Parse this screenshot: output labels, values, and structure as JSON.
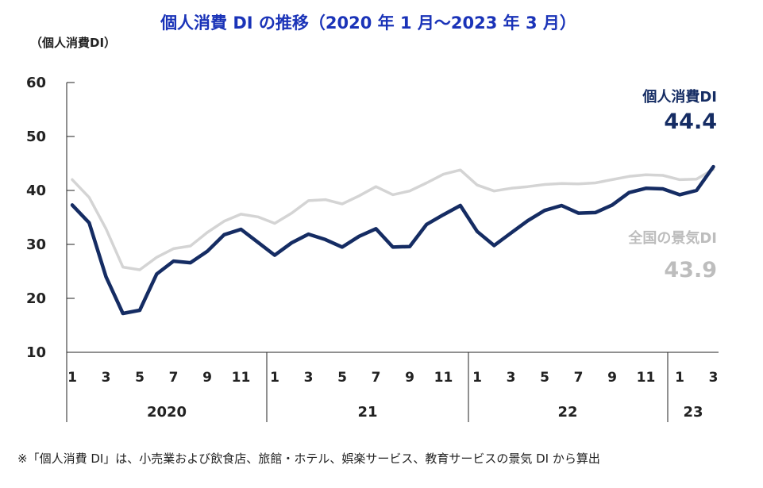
{
  "colors": {
    "personal": "#152c63",
    "national": "#d4d4d4",
    "title": "#1a33b8",
    "axis": "#222222",
    "text": "#222222",
    "national_label": "#bdbdbd"
  },
  "chart_data": {
    "type": "line",
    "title": "個人消費 DI の推移（2020 年 1 月～2023 年 3 月）",
    "ylabel": "（個人消費DI）",
    "ylim": [
      10,
      60
    ],
    "yticks": [
      "60",
      "50",
      "40",
      "30",
      "20",
      "10"
    ],
    "ytick_values": [
      60,
      50,
      40,
      30,
      20,
      10
    ],
    "month_tick_labels": [
      "1",
      "3",
      "5",
      "7",
      "9",
      "11",
      "1",
      "3",
      "5",
      "7",
      "9",
      "11",
      "1",
      "3",
      "5",
      "7",
      "9",
      "11",
      "1",
      "3"
    ],
    "month_tick_index": [
      0,
      2,
      4,
      6,
      8,
      10,
      12,
      14,
      16,
      18,
      20,
      22,
      24,
      26,
      28,
      30,
      32,
      34,
      36,
      38
    ],
    "years": [
      {
        "label": "2020",
        "start": 0,
        "end": 12
      },
      {
        "label": "21",
        "start": 12,
        "end": 24
      },
      {
        "label": "22",
        "start": 24,
        "end": 36
      },
      {
        "label": "23",
        "start": 36,
        "end": 39
      }
    ],
    "series": [
      {
        "name": "全国の景気DI",
        "last_label": "43.9",
        "values": [
          42.0,
          38.7,
          32.9,
          25.8,
          25.3,
          27.6,
          29.2,
          29.7,
          32.2,
          34.3,
          35.6,
          35.1,
          33.9,
          35.8,
          38.1,
          38.3,
          37.5,
          39.0,
          40.7,
          39.2,
          39.9,
          41.4,
          43.0,
          43.8,
          41.0,
          39.9,
          40.4,
          40.7,
          41.1,
          41.3,
          41.2,
          41.4,
          42.0,
          42.6,
          42.9,
          42.8,
          42.0,
          42.1,
          43.9
        ]
      },
      {
        "name": "個人消費DI",
        "last_label": "44.4",
        "values": [
          37.3,
          34.0,
          24.0,
          17.2,
          17.8,
          24.5,
          26.9,
          26.6,
          28.7,
          31.8,
          32.8,
          30.4,
          28.0,
          30.3,
          31.9,
          30.9,
          29.5,
          31.5,
          32.9,
          29.5,
          29.6,
          33.7,
          35.5,
          37.2,
          32.4,
          29.8,
          32.1,
          34.4,
          36.3,
          37.2,
          35.8,
          35.9,
          37.3,
          39.6,
          40.4,
          40.3,
          39.2,
          40.0,
          44.4
        ]
      }
    ]
  },
  "labels": {
    "personal_name": "個人消費DI",
    "personal_value": "44.4",
    "national_name": "全国の景気DI",
    "national_value": "43.9"
  },
  "note": "※「個人消費 DI」は、小売業および飲食店、旅館・ホテル、娯楽サービス、教育サービスの景気 DI から算出"
}
